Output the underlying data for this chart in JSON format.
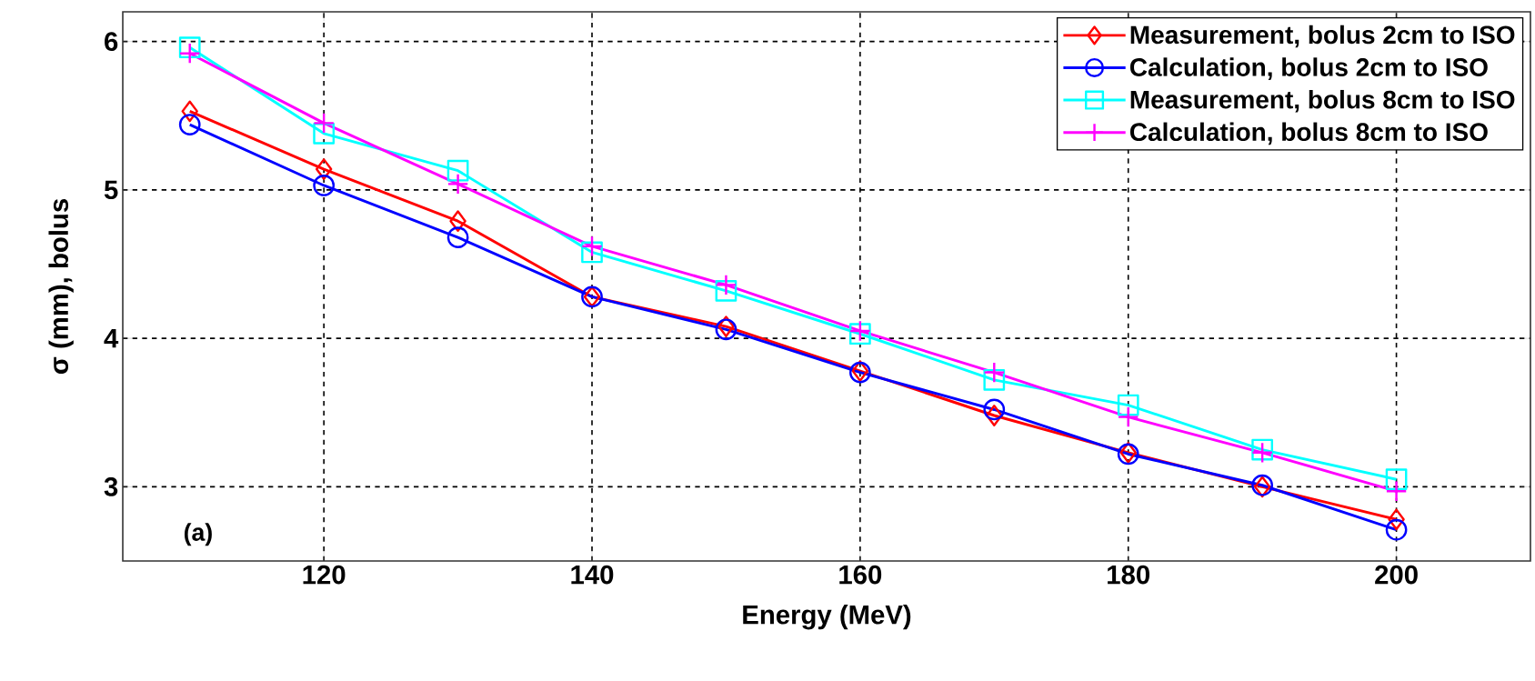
{
  "chart_data": {
    "type": "line",
    "xlabel": "Energy (MeV)",
    "ylabel": "σ (mm), bolus",
    "x": [
      110,
      120,
      130,
      140,
      150,
      160,
      170,
      180,
      190,
      200
    ],
    "series": [
      {
        "name": "Measurement, bolus 2cm to ISO",
        "color": "#ff0000",
        "marker": "diamond",
        "values": [
          5.53,
          5.14,
          4.79,
          4.28,
          4.08,
          3.78,
          3.48,
          3.23,
          3.0,
          2.78
        ]
      },
      {
        "name": "Calculation, bolus 2cm to ISO",
        "color": "#0000ff",
        "marker": "circle",
        "values": [
          5.44,
          5.03,
          4.68,
          4.28,
          4.06,
          3.77,
          3.52,
          3.22,
          3.01,
          2.71
        ]
      },
      {
        "name": "Measurement, bolus 8cm to ISO",
        "color": "#00ffff",
        "marker": "square",
        "values": [
          5.96,
          5.38,
          5.13,
          4.58,
          4.32,
          4.03,
          3.72,
          3.55,
          3.25,
          3.05
        ]
      },
      {
        "name": "Calculation, bolus 8cm to ISO",
        "color": "#ff00ff",
        "marker": "cross",
        "values": [
          5.92,
          5.45,
          5.04,
          4.62,
          4.36,
          4.05,
          3.77,
          3.47,
          3.23,
          2.97
        ]
      }
    ],
    "xlim": [
      105,
      210
    ],
    "ylim": [
      2.5,
      6.2
    ],
    "xticks": [
      120,
      140,
      160,
      180,
      200
    ],
    "yticks": [
      3,
      4,
      5,
      6
    ],
    "grid": true,
    "legend": "top right",
    "line_style": "solid",
    "annotations": [
      "(a)"
    ]
  }
}
